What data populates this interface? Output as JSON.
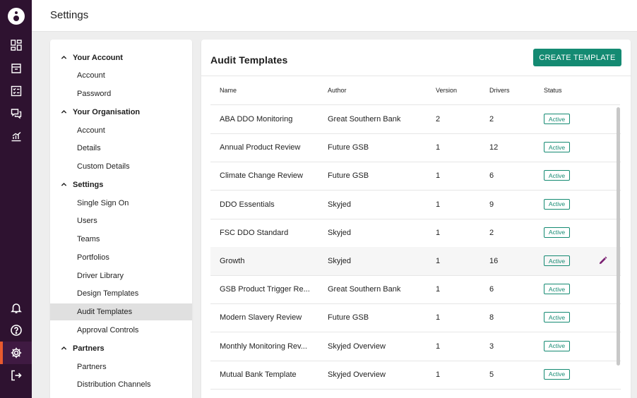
{
  "header": {
    "title": "Settings"
  },
  "sidebar": {
    "icons": [
      "dashboard-icon",
      "inbox-icon",
      "checklist-icon",
      "chat-icon",
      "analytics-icon",
      "bell-icon",
      "help-icon",
      "settings-icon",
      "logout-icon"
    ]
  },
  "nav": {
    "sections": [
      {
        "label": "Your Account",
        "items": [
          "Account",
          "Password"
        ]
      },
      {
        "label": "Your Organisation",
        "items": [
          "Account",
          "Details",
          "Custom Details"
        ]
      },
      {
        "label": "Settings",
        "items": [
          "Single Sign On",
          "Users",
          "Teams",
          "Portfolios",
          "Driver Library",
          "Design Templates",
          "Audit Templates",
          "Approval Controls"
        ]
      },
      {
        "label": "Partners",
        "items": [
          "Partners",
          "Distribution Channels"
        ]
      }
    ],
    "selected": "Audit Templates"
  },
  "main": {
    "title": "Audit Templates",
    "create_label": "CREATE TEMPLATE",
    "columns": [
      "Name",
      "Author",
      "Version",
      "Drivers",
      "Status"
    ],
    "rows": [
      {
        "name": "ABA DDO Monitoring",
        "author": "Great Southern Bank",
        "version": "2",
        "drivers": "2",
        "status": "Active"
      },
      {
        "name": "Annual Product Review",
        "author": "Future GSB",
        "version": "1",
        "drivers": "12",
        "status": "Active"
      },
      {
        "name": "Climate Change Review",
        "author": "Future GSB",
        "version": "1",
        "drivers": "6",
        "status": "Active"
      },
      {
        "name": "DDO Essentials",
        "author": "Skyjed",
        "version": "1",
        "drivers": "9",
        "status": "Active"
      },
      {
        "name": "FSC DDO Standard",
        "author": "Skyjed",
        "version": "1",
        "drivers": "2",
        "status": "Active"
      },
      {
        "name": "Growth",
        "author": "Skyjed",
        "version": "1",
        "drivers": "16",
        "status": "Active"
      },
      {
        "name": "GSB Product Trigger Re...",
        "author": "Great Southern Bank",
        "version": "1",
        "drivers": "6",
        "status": "Active"
      },
      {
        "name": "Modern Slavery Review",
        "author": "Future GSB",
        "version": "1",
        "drivers": "8",
        "status": "Active"
      },
      {
        "name": "Monthly Monitoring Rev...",
        "author": "Skyjed Overview",
        "version": "1",
        "drivers": "3",
        "status": "Active"
      },
      {
        "name": "Mutual Bank Template",
        "author": "Skyjed Overview",
        "version": "1",
        "drivers": "5",
        "status": "Active"
      }
    ],
    "hovered_row": 5
  },
  "colors": {
    "rail": "#2e1230",
    "accent": "#148a72",
    "active_indicator": "#e85a2e",
    "edit_icon": "#7a1f72"
  }
}
